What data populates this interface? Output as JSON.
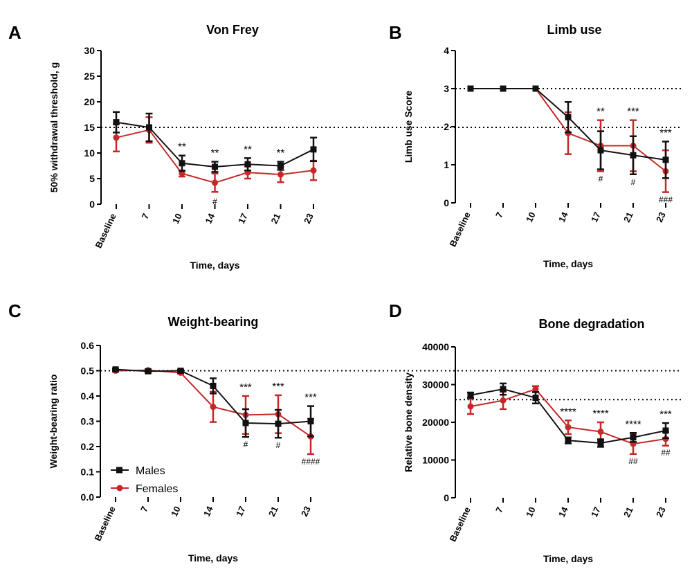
{
  "colors": {
    "males": "#111111",
    "females": "#c62828"
  },
  "legend": {
    "males": "Males",
    "females": "Females"
  },
  "chart_data": [
    {
      "panel": "A",
      "type": "line",
      "title": "Von Frey",
      "xlabel": "Time, days",
      "ylabel": "50% withdrawal threshold, g",
      "categories": [
        "Baseline",
        "7",
        "10",
        "14",
        "17",
        "21",
        "23"
      ],
      "ylim": [
        0,
        30
      ],
      "yticks": [
        "0",
        "5",
        "10",
        "15",
        "20",
        "25",
        "30"
      ],
      "reference_line": 15,
      "series": [
        {
          "name": "Males",
          "values": [
            16,
            15,
            8,
            7.3,
            7.8,
            7.5,
            10.7
          ],
          "err": [
            2.0,
            2.7,
            1.5,
            1.0,
            1.2,
            0.8,
            2.3
          ]
        },
        {
          "name": "Females",
          "values": [
            13,
            14.5,
            6,
            4.2,
            6.2,
            5.8,
            6.6
          ],
          "err": [
            2.7,
            2.5,
            0.6,
            1.8,
            1.2,
            1.5,
            1.9
          ]
        }
      ],
      "annotations": [
        {
          "x": "10",
          "text": "**",
          "pos": "top"
        },
        {
          "x": "14",
          "text": "**",
          "pos": "top"
        },
        {
          "x": "17",
          "text": "**",
          "pos": "top"
        },
        {
          "x": "21",
          "text": "**",
          "pos": "top"
        },
        {
          "x": "14",
          "text": "#",
          "pos": "bottom"
        }
      ]
    },
    {
      "panel": "B",
      "type": "line",
      "title": "Limb use",
      "xlabel": "Time, days",
      "ylabel": "Limb use Score",
      "categories": [
        "Baseline",
        "7",
        "10",
        "14",
        "17",
        "21",
        "23"
      ],
      "ylim": [
        0,
        4
      ],
      "yticks": [
        "0",
        "1",
        "2",
        "3",
        "4"
      ],
      "reference_line": 3,
      "series": [
        {
          "name": "Males",
          "values": [
            3,
            3,
            3,
            2.25,
            1.38,
            1.25,
            1.13
          ],
          "err": [
            0,
            0,
            0,
            0.4,
            0.5,
            0.5,
            0.48
          ]
        },
        {
          "name": "Females",
          "values": [
            3,
            3,
            3,
            1.83,
            1.5,
            1.5,
            0.83
          ],
          "err": [
            0,
            0,
            0,
            0.55,
            0.67,
            0.67,
            0.55
          ]
        }
      ],
      "annotations": [
        {
          "x": "17",
          "text": "**",
          "pos": "top"
        },
        {
          "x": "21",
          "text": "***",
          "pos": "top"
        },
        {
          "x": "23",
          "text": "***",
          "pos": "top"
        },
        {
          "x": "17",
          "text": "#",
          "pos": "bottom"
        },
        {
          "x": "21",
          "text": "#",
          "pos": "bottom"
        },
        {
          "x": "23",
          "text": "###",
          "pos": "bottom"
        }
      ]
    },
    {
      "panel": "C",
      "type": "line",
      "title": "Weight-bearing",
      "xlabel": "Time, days",
      "ylabel": "Weight-bearing ratio",
      "categories": [
        "Baseline",
        "7",
        "10",
        "14",
        "17",
        "21",
        "23"
      ],
      "ylim": [
        0,
        0.6
      ],
      "yticks": [
        "0.0",
        "0.1",
        "0.2",
        "0.3",
        "0.4",
        "0.5",
        "0.6"
      ],
      "reference_line": 0.5,
      "legend_position": "bottom-left",
      "series": [
        {
          "name": "Males",
          "values": [
            0.505,
            0.498,
            0.5,
            0.44,
            0.293,
            0.29,
            0.3
          ],
          "err": [
            0.004,
            0.006,
            0.004,
            0.03,
            0.055,
            0.055,
            0.06
          ]
        },
        {
          "name": "Females",
          "values": [
            0.5,
            0.502,
            0.492,
            0.357,
            0.325,
            0.328,
            0.24
          ],
          "err": [
            0.004,
            0.004,
            0.004,
            0.06,
            0.075,
            0.075,
            0.07
          ]
        }
      ],
      "annotations": [
        {
          "x": "17",
          "text": "***",
          "pos": "top"
        },
        {
          "x": "21",
          "text": "***",
          "pos": "top"
        },
        {
          "x": "23",
          "text": "***",
          "pos": "top"
        },
        {
          "x": "17",
          "text": "#",
          "pos": "bottom"
        },
        {
          "x": "21",
          "text": "#",
          "pos": "bottom"
        },
        {
          "x": "23",
          "text": "####",
          "pos": "bottom"
        }
      ]
    },
    {
      "panel": "D",
      "type": "line",
      "title": "Bone degradation",
      "xlabel": "Time, days",
      "ylabel": "Relative bone density",
      "categories": [
        "Baseline",
        "7",
        "10",
        "14",
        "17",
        "21",
        "23"
      ],
      "ylim": [
        0,
        40000
      ],
      "yticks": [
        "0",
        "10000",
        "20000",
        "30000",
        "40000"
      ],
      "reference_line": 26000,
      "series": [
        {
          "name": "Males",
          "values": [
            27200,
            28800,
            26500,
            15200,
            14500,
            16000,
            17800
          ],
          "err": [
            700,
            1500,
            1500,
            800,
            1000,
            1200,
            2000
          ]
        },
        {
          "name": "Females",
          "values": [
            24200,
            25800,
            28800,
            18700,
            17500,
            14300,
            15600
          ],
          "err": [
            2000,
            2300,
            800,
            1800,
            2500,
            2700,
            1800
          ]
        }
      ],
      "annotations": [
        {
          "x": "14",
          "text": "****",
          "pos": "top"
        },
        {
          "x": "17",
          "text": "****",
          "pos": "top"
        },
        {
          "x": "21",
          "text": "****",
          "pos": "top"
        },
        {
          "x": "23",
          "text": "***",
          "pos": "top"
        },
        {
          "x": "21",
          "text": "##",
          "pos": "bottom"
        },
        {
          "x": "23",
          "text": "##",
          "pos": "bottom"
        }
      ]
    }
  ]
}
